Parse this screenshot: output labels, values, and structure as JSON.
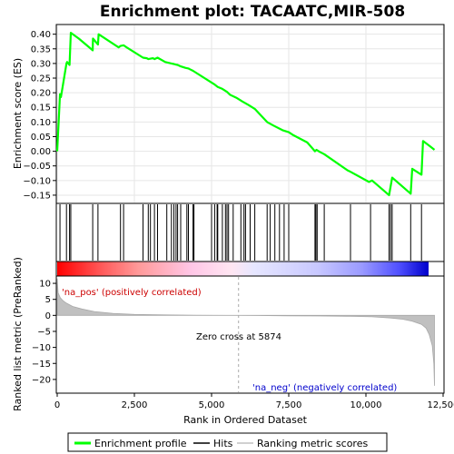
{
  "chart_data": [
    {
      "type": "line",
      "title": "Enrichment plot: TACAATC,MIR-508",
      "ylabel": "Enrichment score (ES)",
      "ylim": [
        -0.175,
        0.43
      ],
      "yticks": [
        "−0.15",
        "−0.10",
        "−0.05",
        "0.00",
        "0.05",
        "0.10",
        "0.15",
        "0.20",
        "0.25",
        "0.30",
        "0.35",
        "0.40"
      ],
      "ytick_values": [
        -0.15,
        -0.1,
        -0.05,
        0.0,
        0.05,
        0.1,
        0.15,
        0.2,
        0.25,
        0.3,
        0.35,
        0.4
      ],
      "xlim": [
        0,
        12500
      ],
      "grid": true,
      "line_color": "#00ff00",
      "series": [
        {
          "name": "Enrichment profile",
          "x": [
            0,
            90,
            120,
            300,
            320,
            400,
            440,
            700,
            1150,
            1160,
            1320,
            1340,
            1990,
            2050,
            2150,
            2250,
            2780,
            2900,
            2950,
            3100,
            3150,
            3250,
            3500,
            3700,
            3780,
            3850,
            3900,
            4000,
            4150,
            4250,
            4300,
            4400,
            5000,
            5100,
            5200,
            5350,
            5500,
            5600,
            5800,
            6000,
            6200,
            6400,
            6800,
            7000,
            7300,
            7500,
            7650,
            8100,
            8350,
            8400,
            8500,
            8650,
            9400,
            9500,
            10100,
            10200,
            10750,
            10800,
            10850,
            11450,
            11500,
            11800,
            11850,
            12100,
            12220
          ],
          "y": [
            0.0,
            0.195,
            0.185,
            0.3,
            0.305,
            0.295,
            0.405,
            0.385,
            0.345,
            0.385,
            0.365,
            0.4,
            0.355,
            0.36,
            0.362,
            0.355,
            0.32,
            0.318,
            0.315,
            0.318,
            0.315,
            0.32,
            0.305,
            0.3,
            0.298,
            0.296,
            0.295,
            0.29,
            0.285,
            0.283,
            0.28,
            0.275,
            0.235,
            0.228,
            0.22,
            0.213,
            0.203,
            0.193,
            0.183,
            0.17,
            0.158,
            0.145,
            0.1,
            0.088,
            0.072,
            0.065,
            0.055,
            0.03,
            0.0,
            0.005,
            -0.002,
            -0.01,
            -0.065,
            -0.07,
            -0.105,
            -0.1,
            -0.15,
            -0.12,
            -0.09,
            -0.145,
            -0.06,
            -0.08,
            0.035,
            0.015,
            0.005
          ]
        }
      ]
    },
    {
      "type": "scatter",
      "series": [
        {
          "name": "Hits",
          "x": [
            90,
            300,
            400,
            440,
            1150,
            1320,
            2050,
            2150,
            2780,
            2950,
            3020,
            3150,
            3250,
            3550,
            3700,
            3780,
            3850,
            3900,
            4000,
            4200,
            4250,
            4400,
            4430,
            5000,
            5100,
            5180,
            5200,
            5350,
            5450,
            5500,
            5550,
            5700,
            5950,
            6050,
            6100,
            6250,
            6400,
            6800,
            6900,
            7050,
            7200,
            7350,
            7500,
            8350,
            8380,
            8420,
            8650,
            9500,
            10150,
            10750,
            10800,
            10850,
            11450,
            11800
          ]
        }
      ]
    },
    {
      "type": "area",
      "title": "",
      "xlabel": "Rank in Ordered Dataset",
      "ylabel": "Ranked list metric (PreRanked)",
      "xlim": [
        0,
        12500
      ],
      "ylim": [
        -24,
        12
      ],
      "xticks": [
        "0",
        "2,500",
        "5,000",
        "7,500",
        "10,000",
        "12,500"
      ],
      "xtick_values": [
        0,
        2500,
        5000,
        7500,
        10000,
        12500
      ],
      "yticks": [
        "10",
        "5",
        "0",
        "−5",
        "−10",
        "−15",
        "−20"
      ],
      "ytick_values": [
        10,
        5,
        0,
        -5,
        -10,
        -15,
        -20
      ],
      "zero_cross": 5874,
      "series": [
        {
          "name": "Ranking metric scores",
          "x": [
            0,
            30,
            100,
            200,
            300,
            500,
            800,
            1200,
            1800,
            2500,
            3500,
            4500,
            5500,
            5874,
            6500,
            7500,
            8500,
            9500,
            10200,
            10800,
            11200,
            11500,
            11800,
            11950,
            12050,
            12150,
            12200,
            12220
          ],
          "y": [
            11.5,
            7.0,
            5.5,
            4.5,
            3.8,
            2.8,
            2.0,
            1.2,
            0.6,
            0.3,
            0.15,
            0.08,
            0.02,
            0.0,
            -0.05,
            -0.12,
            -0.2,
            -0.3,
            -0.45,
            -0.8,
            -1.2,
            -1.8,
            -2.8,
            -4.0,
            -6.0,
            -9.5,
            -15.0,
            -22.0
          ]
        }
      ],
      "annotations": {
        "pos": "'na_pos' (positively correlated)",
        "neg": "'na_neg' (negatively correlated)",
        "zero": "Zero cross at 5874"
      }
    }
  ],
  "legend": {
    "items": [
      {
        "label": "Enrichment profile",
        "color": "#00ff00"
      },
      {
        "label": "Hits",
        "color": "#000000"
      },
      {
        "label": "Ranking metric scores",
        "color": "#c0c0c0"
      }
    ]
  }
}
